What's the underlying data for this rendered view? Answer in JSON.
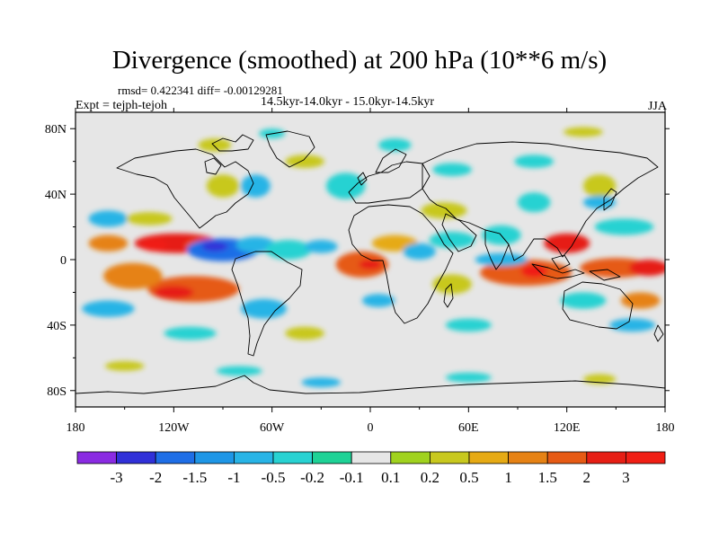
{
  "chart_data": {
    "type": "heatmap",
    "title": "Divergence (smoothed) at 200 hPa (10**6 m/s)",
    "stats": "rmsd= 0.422341 diff= -0.00129281",
    "experiment": "Expt = tejph-tejoh",
    "period": "14.5kyr-14.0kyr - 15.0kyr-14.5kyr",
    "season": "JJA",
    "projection": "cylindrical equidistant, global",
    "xlim": [
      -180,
      180
    ],
    "ylim": [
      -90,
      90
    ],
    "x_ticks": [
      {
        "value": -180,
        "label": "180"
      },
      {
        "value": -120,
        "label": "120W"
      },
      {
        "value": -60,
        "label": "60W"
      },
      {
        "value": 0,
        "label": "0"
      },
      {
        "value": 60,
        "label": "60E"
      },
      {
        "value": 120,
        "label": "120E"
      },
      {
        "value": 180,
        "label": "180"
      }
    ],
    "y_ticks": [
      {
        "value": 80,
        "label": "80N"
      },
      {
        "value": 40,
        "label": "40N"
      },
      {
        "value": 0,
        "label": "0"
      },
      {
        "value": -40,
        "label": "40S"
      },
      {
        "value": -80,
        "label": "80S"
      }
    ],
    "levels": [
      "-3",
      "-2",
      "-1.5",
      "-1",
      "-0.5",
      "-0.2",
      "-0.1",
      "0.1",
      "0.2",
      "0.5",
      "1",
      "1.5",
      "2",
      "3"
    ],
    "colors": [
      "#8a2be2",
      "#3030d8",
      "#1e6ee6",
      "#1e96e6",
      "#28b4e6",
      "#28d2d2",
      "#1ed296",
      "#e6e6e6",
      "#a0d21e",
      "#c8c81e",
      "#e6aa14",
      "#e68214",
      "#e65a14",
      "#e61e14",
      "#f01e14"
    ],
    "features": [
      {
        "lon": -118,
        "lat": 10,
        "rx": 26,
        "ry": 6,
        "level": 13
      },
      {
        "lon": -132,
        "lat": 9,
        "rx": 8,
        "ry": 4,
        "level": 14
      },
      {
        "lon": -105,
        "lat": 8,
        "rx": 8,
        "ry": 4,
        "level": 12
      },
      {
        "lon": -90,
        "lat": 6,
        "rx": 22,
        "ry": 7,
        "level": 2
      },
      {
        "lon": -95,
        "lat": 8,
        "rx": 8,
        "ry": 3,
        "level": 1
      },
      {
        "lon": -70,
        "lat": 9,
        "rx": 12,
        "ry": 5,
        "level": 4
      },
      {
        "lon": -50,
        "lat": 6,
        "rx": 14,
        "ry": 6,
        "level": 5
      },
      {
        "lon": -108,
        "lat": -18,
        "rx": 28,
        "ry": 8,
        "level": 12
      },
      {
        "lon": -120,
        "lat": -20,
        "rx": 12,
        "ry": 4,
        "level": 13
      },
      {
        "lon": -145,
        "lat": -10,
        "rx": 18,
        "ry": 8,
        "level": 11
      },
      {
        "lon": -160,
        "lat": 10,
        "rx": 12,
        "ry": 5,
        "level": 11
      },
      {
        "lon": -160,
        "lat": 25,
        "rx": 12,
        "ry": 5,
        "level": 4
      },
      {
        "lon": -135,
        "lat": 25,
        "rx": 14,
        "ry": 4,
        "level": 9
      },
      {
        "lon": -160,
        "lat": -30,
        "rx": 16,
        "ry": 5,
        "level": 4
      },
      {
        "lon": -65,
        "lat": -30,
        "rx": 14,
        "ry": 6,
        "level": 4
      },
      {
        "lon": -90,
        "lat": 45,
        "rx": 10,
        "ry": 7,
        "level": 9
      },
      {
        "lon": -70,
        "lat": 45,
        "rx": 9,
        "ry": 7,
        "level": 4
      },
      {
        "lon": -40,
        "lat": 60,
        "rx": 12,
        "ry": 4,
        "level": 9
      },
      {
        "lon": -95,
        "lat": 70,
        "rx": 10,
        "ry": 4,
        "level": 9
      },
      {
        "lon": -60,
        "lat": 77,
        "rx": 8,
        "ry": 3,
        "level": 5
      },
      {
        "lon": -15,
        "lat": 45,
        "rx": 12,
        "ry": 8,
        "level": 5
      },
      {
        "lon": 15,
        "lat": 70,
        "rx": 10,
        "ry": 4,
        "level": 5
      },
      {
        "lon": 50,
        "lat": 55,
        "rx": 12,
        "ry": 4,
        "level": 5
      },
      {
        "lon": 100,
        "lat": 60,
        "rx": 12,
        "ry": 4,
        "level": 5
      },
      {
        "lon": 130,
        "lat": 78,
        "rx": 12,
        "ry": 3,
        "level": 9
      },
      {
        "lon": 140,
        "lat": 45,
        "rx": 10,
        "ry": 7,
        "level": 9
      },
      {
        "lon": 100,
        "lat": 35,
        "rx": 10,
        "ry": 6,
        "level": 5
      },
      {
        "lon": -5,
        "lat": -3,
        "rx": 16,
        "ry": 8,
        "level": 12
      },
      {
        "lon": 0,
        "lat": -3,
        "rx": 7,
        "ry": 3,
        "level": 13
      },
      {
        "lon": 15,
        "lat": 10,
        "rx": 14,
        "ry": 5,
        "level": 10
      },
      {
        "lon": -30,
        "lat": 8,
        "rx": 10,
        "ry": 4,
        "level": 4
      },
      {
        "lon": 30,
        "lat": 5,
        "rx": 10,
        "ry": 5,
        "level": 4
      },
      {
        "lon": 50,
        "lat": 12,
        "rx": 14,
        "ry": 5,
        "level": 5
      },
      {
        "lon": 50,
        "lat": -15,
        "rx": 12,
        "ry": 6,
        "level": 9
      },
      {
        "lon": 5,
        "lat": -25,
        "rx": 10,
        "ry": 4,
        "level": 4
      },
      {
        "lon": 45,
        "lat": 30,
        "rx": 14,
        "ry": 5,
        "level": 9
      },
      {
        "lon": 95,
        "lat": -8,
        "rx": 28,
        "ry": 8,
        "level": 12
      },
      {
        "lon": 100,
        "lat": -7,
        "rx": 8,
        "ry": 4,
        "level": 14
      },
      {
        "lon": 120,
        "lat": 10,
        "rx": 14,
        "ry": 6,
        "level": 13
      },
      {
        "lon": 80,
        "lat": 15,
        "rx": 12,
        "ry": 6,
        "level": 5
      },
      {
        "lon": 80,
        "lat": 0,
        "rx": 16,
        "ry": 4,
        "level": 4
      },
      {
        "lon": 150,
        "lat": -5,
        "rx": 22,
        "ry": 6,
        "level": 12
      },
      {
        "lon": 170,
        "lat": -5,
        "rx": 12,
        "ry": 5,
        "level": 13
      },
      {
        "lon": 155,
        "lat": 20,
        "rx": 18,
        "ry": 5,
        "level": 5
      },
      {
        "lon": 140,
        "lat": 35,
        "rx": 10,
        "ry": 4,
        "level": 4
      },
      {
        "lon": 130,
        "lat": -25,
        "rx": 14,
        "ry": 5,
        "level": 5
      },
      {
        "lon": 165,
        "lat": -25,
        "rx": 12,
        "ry": 5,
        "level": 11
      },
      {
        "lon": 160,
        "lat": -40,
        "rx": 14,
        "ry": 4,
        "level": 4
      },
      {
        "lon": -110,
        "lat": -45,
        "rx": 16,
        "ry": 4,
        "level": 5
      },
      {
        "lon": -40,
        "lat": -45,
        "rx": 12,
        "ry": 4,
        "level": 9
      },
      {
        "lon": 60,
        "lat": -40,
        "rx": 14,
        "ry": 4,
        "level": 5
      },
      {
        "lon": -150,
        "lat": -65,
        "rx": 12,
        "ry": 3,
        "level": 9
      },
      {
        "lon": -80,
        "lat": -68,
        "rx": 14,
        "ry": 3,
        "level": 5
      },
      {
        "lon": -30,
        "lat": -75,
        "rx": 12,
        "ry": 3,
        "level": 4
      },
      {
        "lon": 60,
        "lat": -72,
        "rx": 14,
        "ry": 3,
        "level": 5
      },
      {
        "lon": 140,
        "lat": -73,
        "rx": 10,
        "ry": 3,
        "level": 9
      }
    ]
  }
}
